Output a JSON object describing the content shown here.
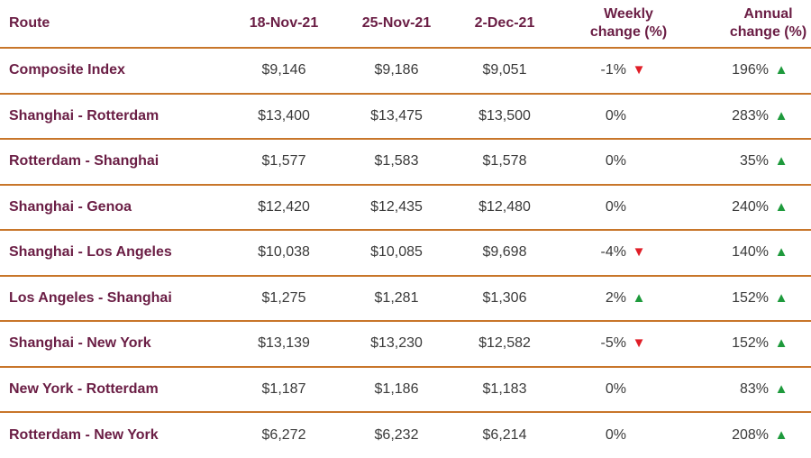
{
  "table": {
    "headers": {
      "route": "Route",
      "date1": "18-Nov-21",
      "date2": "25-Nov-21",
      "date3": "2-Dec-21",
      "weekly_line1": "Weekly",
      "weekly_line2": "change (%)",
      "annual_line1": "Annual",
      "annual_line2": "change (%)"
    },
    "rows": [
      {
        "route": "Composite Index",
        "d1": "$9,146",
        "d2": "$9,186",
        "d3": "$9,051",
        "weekly": "-1%",
        "weekly_dir": "down",
        "annual": "196%",
        "annual_dir": "up"
      },
      {
        "route": "Shanghai - Rotterdam",
        "d1": "$13,400",
        "d2": "$13,475",
        "d3": "$13,500",
        "weekly": "0%",
        "weekly_dir": "none",
        "annual": "283%",
        "annual_dir": "up"
      },
      {
        "route": "Rotterdam - Shanghai",
        "d1": "$1,577",
        "d2": "$1,583",
        "d3": "$1,578",
        "weekly": "0%",
        "weekly_dir": "none",
        "annual": "35%",
        "annual_dir": "up"
      },
      {
        "route": "Shanghai - Genoa",
        "d1": "$12,420",
        "d2": "$12,435",
        "d3": "$12,480",
        "weekly": "0%",
        "weekly_dir": "none",
        "annual": "240%",
        "annual_dir": "up"
      },
      {
        "route": "Shanghai - Los Angeles",
        "d1": "$10,038",
        "d2": "$10,085",
        "d3": "$9,698",
        "weekly": "-4%",
        "weekly_dir": "down",
        "annual": "140%",
        "annual_dir": "up"
      },
      {
        "route": "Los Angeles - Shanghai",
        "d1": "$1,275",
        "d2": "$1,281",
        "d3": "$1,306",
        "weekly": "2%",
        "weekly_dir": "up",
        "annual": "152%",
        "annual_dir": "up"
      },
      {
        "route": "Shanghai - New York",
        "d1": "$13,139",
        "d2": "$13,230",
        "d3": "$12,582",
        "weekly": "-5%",
        "weekly_dir": "down",
        "annual": "152%",
        "annual_dir": "up"
      },
      {
        "route": "New York - Rotterdam",
        "d1": "$1,187",
        "d2": "$1,186",
        "d3": "$1,183",
        "weekly": "0%",
        "weekly_dir": "none",
        "annual": "83%",
        "annual_dir": "up"
      },
      {
        "route": "Rotterdam - New York",
        "d1": "$6,272",
        "d2": "$6,232",
        "d3": "$6,214",
        "weekly": "0%",
        "weekly_dir": "none",
        "annual": "208%",
        "annual_dir": "up"
      }
    ],
    "colors": {
      "label": "#6a1d44",
      "rule": "#c8762a",
      "up": "#1e9a3c",
      "down": "#e01e27"
    },
    "icons": {
      "up": "triangle-up-icon",
      "down": "triangle-down-icon"
    }
  }
}
